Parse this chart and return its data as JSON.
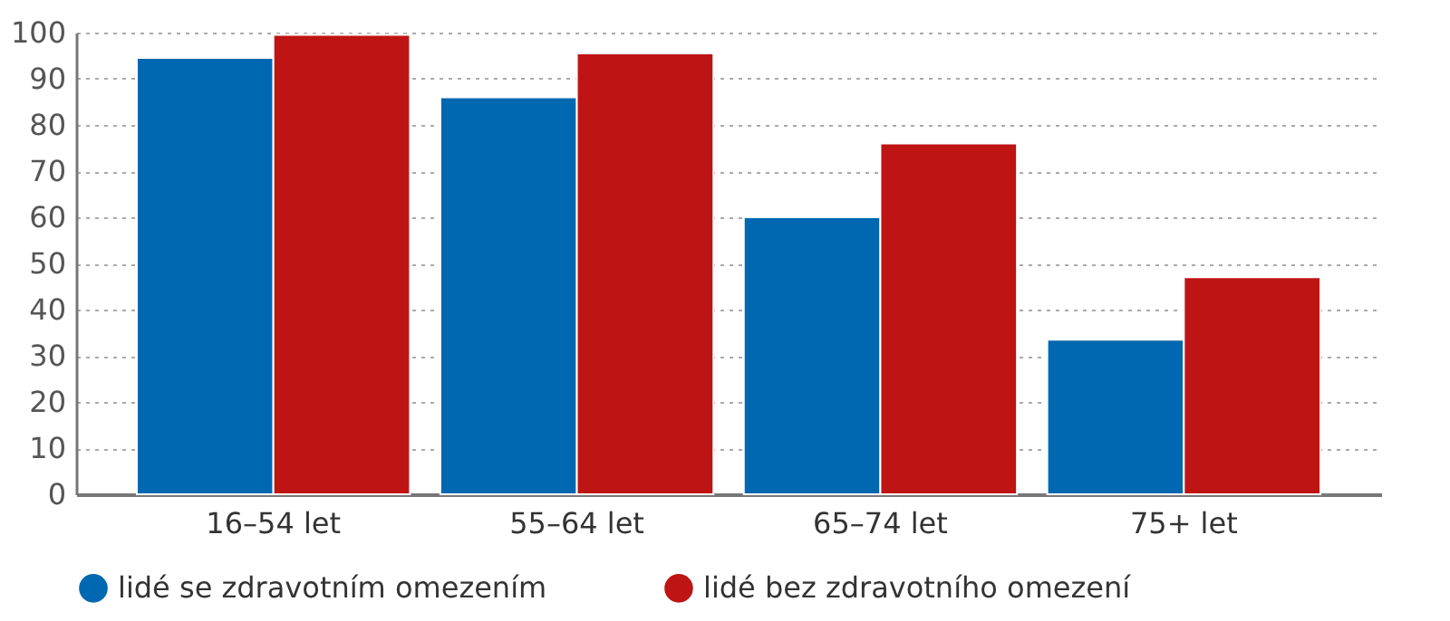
{
  "chart_data": {
    "type": "bar",
    "categories": [
      "16–54 let",
      "55–64 let",
      "65–74 let",
      "75+ let"
    ],
    "series": [
      {
        "name": "lidé se zdravotním omezením",
        "color": "#0068b0",
        "values": [
          94.5,
          86,
          60,
          33.5
        ]
      },
      {
        "name": "lidé bez zdravotního omezení",
        "color": "#be1414",
        "values": [
          99.5,
          95.5,
          76,
          47
        ]
      }
    ],
    "ylim": [
      0,
      100
    ],
    "yticks": [
      0,
      10,
      20,
      30,
      40,
      50,
      60,
      70,
      80,
      90,
      100
    ],
    "grid": "y",
    "legend": "bottom"
  }
}
